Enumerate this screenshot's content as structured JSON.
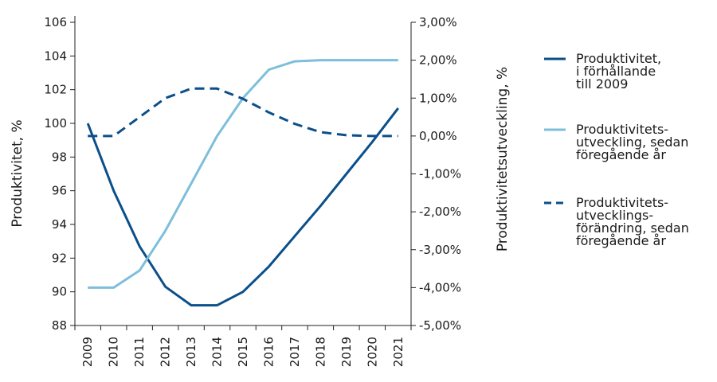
{
  "chart_data": {
    "type": "line",
    "x": [
      "2009",
      "2010",
      "2011",
      "2012",
      "2013",
      "2014",
      "2015",
      "2016",
      "2017",
      "2018",
      "2019",
      "2020",
      "2021"
    ],
    "left_axis": {
      "label": "Produktivitet, %",
      "ylim": [
        88,
        106
      ],
      "ticks": [
        "88",
        "90",
        "92",
        "94",
        "96",
        "98",
        "100",
        "102",
        "104",
        "106"
      ]
    },
    "right_axis": {
      "label": "Produktivitetsutveckling, %",
      "ylim": [
        -5,
        3
      ],
      "ticks": [
        "-5,00%",
        "-4,00%",
        "-3,00%",
        "-2,00%",
        "-1,00%",
        "0,00%",
        "1,00%",
        "2,00%",
        "3,00%"
      ]
    },
    "grid": false,
    "legend_placement": "right",
    "series": [
      {
        "name_lines": [
          "Produktivitet,",
          "i förhållande",
          "till 2009"
        ],
        "axis": "left",
        "style": "solid",
        "color": "#0b4f8a",
        "values": [
          100,
          96,
          92.7,
          90.3,
          89.2,
          89.2,
          90,
          91.5,
          93.3,
          95.1,
          97,
          98.9,
          100.9
        ]
      },
      {
        "name_lines": [
          "Produktivitets-",
          "utveckling, sedan",
          "föregående år"
        ],
        "axis": "right",
        "style": "solid",
        "color": "#7dbfdb",
        "values": [
          -4.0,
          -4.0,
          -3.55,
          -2.5,
          -1.25,
          0.0,
          1.0,
          1.75,
          1.97,
          2.0,
          2.0,
          2.0,
          2.0
        ]
      },
      {
        "name_lines": [
          "Produktivitets-",
          "utvecklings-",
          "förändring, sedan",
          "föregående år"
        ],
        "axis": "right",
        "style": "dashed",
        "color": "#0b4f8a",
        "values": [
          0,
          0,
          0.5,
          1.0,
          1.25,
          1.25,
          0.98,
          0.62,
          0.32,
          0.1,
          0.02,
          0,
          0
        ]
      }
    ]
  }
}
